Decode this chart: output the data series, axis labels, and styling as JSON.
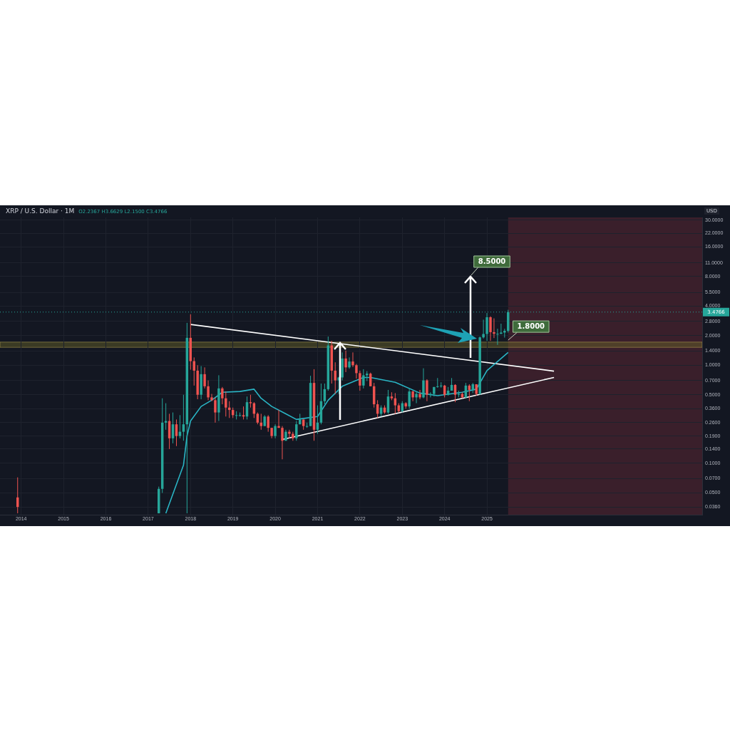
{
  "chart_data": {
    "type": "candlestick",
    "title": "XRP / U.S. Dollar · 1M",
    "subtitle": "O2.2367 H3.6629 L2.1500 C3.4766",
    "ylabel": "USD",
    "x": [
      "2013-12",
      "2017-04",
      "2017-05",
      "2017-06",
      "2017-07",
      "2017-08",
      "2017-09",
      "2017-10",
      "2017-11",
      "2017-12",
      "2018-01",
      "2018-02",
      "2018-03",
      "2018-04",
      "2018-05",
      "2018-06",
      "2018-07",
      "2018-08",
      "2018-09",
      "2018-10",
      "2018-11",
      "2018-12",
      "2019-01",
      "2019-02",
      "2019-03",
      "2019-04",
      "2019-05",
      "2019-06",
      "2019-07",
      "2019-08",
      "2019-09",
      "2019-10",
      "2019-11",
      "2019-12",
      "2020-01",
      "2020-02",
      "2020-03",
      "2020-04",
      "2020-05",
      "2020-06",
      "2020-07",
      "2020-08",
      "2020-09",
      "2020-10",
      "2020-11",
      "2020-12",
      "2021-01",
      "2021-02",
      "2021-03",
      "2021-04",
      "2021-05",
      "2021-06",
      "2021-07",
      "2021-08",
      "2021-09",
      "2021-10",
      "2021-11",
      "2021-12",
      "2022-01",
      "2022-02",
      "2022-03",
      "2022-04",
      "2022-05",
      "2022-06",
      "2022-07",
      "2022-08",
      "2022-09",
      "2022-10",
      "2022-11",
      "2022-12",
      "2023-01",
      "2023-02",
      "2023-03",
      "2023-04",
      "2023-05",
      "2023-06",
      "2023-07",
      "2023-08",
      "2023-09",
      "2023-10",
      "2023-11",
      "2023-12",
      "2024-01",
      "2024-02",
      "2024-03",
      "2024-04",
      "2024-05",
      "2024-06",
      "2024-07",
      "2024-08",
      "2024-09",
      "2024-10",
      "2024-11",
      "2024-12",
      "2025-01",
      "2025-02",
      "2025-03",
      "2025-04",
      "2025-05",
      "2025-06",
      "2025-07"
    ],
    "ohlc": [
      [
        0.045,
        0.072,
        0.031,
        0.036
      ],
      [
        0.031,
        0.058,
        0.031,
        0.055
      ],
      [
        0.055,
        0.46,
        0.05,
        0.26
      ],
      [
        0.26,
        0.41,
        0.22,
        0.27
      ],
      [
        0.27,
        0.32,
        0.14,
        0.18
      ],
      [
        0.18,
        0.33,
        0.16,
        0.25
      ],
      [
        0.25,
        0.28,
        0.15,
        0.19
      ],
      [
        0.19,
        0.31,
        0.18,
        0.21
      ],
      [
        0.21,
        0.5,
        0.17,
        0.25
      ],
      [
        0.25,
        2.7,
        0.031,
        1.9
      ],
      [
        1.9,
        3.3,
        0.9,
        1.1
      ],
      [
        1.1,
        1.2,
        0.62,
        0.88
      ],
      [
        0.88,
        1.0,
        0.45,
        0.5
      ],
      [
        0.5,
        0.98,
        0.45,
        0.81
      ],
      [
        0.81,
        0.95,
        0.58,
        0.61
      ],
      [
        0.61,
        0.7,
        0.44,
        0.47
      ],
      [
        0.47,
        0.51,
        0.43,
        0.44
      ],
      [
        0.44,
        0.47,
        0.26,
        0.33
      ],
      [
        0.33,
        0.79,
        0.27,
        0.58
      ],
      [
        0.58,
        0.6,
        0.4,
        0.46
      ],
      [
        0.46,
        0.54,
        0.3,
        0.37
      ],
      [
        0.37,
        0.43,
        0.29,
        0.35
      ],
      [
        0.35,
        0.37,
        0.29,
        0.31
      ],
      [
        0.31,
        0.34,
        0.28,
        0.31
      ],
      [
        0.31,
        0.33,
        0.3,
        0.31
      ],
      [
        0.31,
        0.38,
        0.28,
        0.3
      ],
      [
        0.3,
        0.48,
        0.28,
        0.42
      ],
      [
        0.42,
        0.5,
        0.37,
        0.41
      ],
      [
        0.41,
        0.42,
        0.29,
        0.32
      ],
      [
        0.32,
        0.33,
        0.25,
        0.26
      ],
      [
        0.26,
        0.32,
        0.22,
        0.24
      ],
      [
        0.24,
        0.31,
        0.24,
        0.3
      ],
      [
        0.3,
        0.31,
        0.21,
        0.23
      ],
      [
        0.23,
        0.23,
        0.18,
        0.19
      ],
      [
        0.19,
        0.25,
        0.18,
        0.24
      ],
      [
        0.24,
        0.35,
        0.23,
        0.23
      ],
      [
        0.23,
        0.24,
        0.11,
        0.17
      ],
      [
        0.17,
        0.22,
        0.17,
        0.21
      ],
      [
        0.21,
        0.22,
        0.18,
        0.2
      ],
      [
        0.2,
        0.21,
        0.17,
        0.18
      ],
      [
        0.18,
        0.27,
        0.17,
        0.25
      ],
      [
        0.25,
        0.32,
        0.25,
        0.28
      ],
      [
        0.28,
        0.28,
        0.22,
        0.24
      ],
      [
        0.24,
        0.26,
        0.23,
        0.24
      ],
      [
        0.24,
        0.78,
        0.24,
        0.66
      ],
      [
        0.66,
        0.91,
        0.17,
        0.22
      ],
      [
        0.22,
        0.39,
        0.2,
        0.26
      ],
      [
        0.26,
        0.65,
        0.25,
        0.43
      ],
      [
        0.43,
        0.65,
        0.4,
        0.57
      ],
      [
        0.57,
        1.96,
        0.55,
        1.59
      ],
      [
        1.59,
        1.77,
        0.65,
        0.88
      ],
      [
        0.88,
        1.07,
        0.51,
        0.7
      ],
      [
        0.7,
        0.76,
        0.51,
        0.75
      ],
      [
        0.75,
        1.35,
        0.7,
        1.17
      ],
      [
        1.17,
        1.41,
        0.85,
        0.95
      ],
      [
        0.95,
        1.2,
        0.92,
        1.09
      ],
      [
        1.09,
        1.35,
        0.96,
        1.0
      ],
      [
        1.0,
        1.03,
        0.73,
        0.83
      ],
      [
        0.83,
        0.88,
        0.55,
        0.62
      ],
      [
        0.62,
        0.91,
        0.58,
        0.79
      ],
      [
        0.79,
        0.87,
        0.69,
        0.82
      ],
      [
        0.82,
        0.84,
        0.61,
        0.61
      ],
      [
        0.61,
        0.66,
        0.37,
        0.4
      ],
      [
        0.4,
        0.44,
        0.29,
        0.32
      ],
      [
        0.32,
        0.39,
        0.3,
        0.37
      ],
      [
        0.37,
        0.39,
        0.32,
        0.33
      ],
      [
        0.33,
        0.56,
        0.32,
        0.48
      ],
      [
        0.48,
        0.53,
        0.44,
        0.46
      ],
      [
        0.46,
        0.52,
        0.32,
        0.39
      ],
      [
        0.39,
        0.41,
        0.33,
        0.34
      ],
      [
        0.34,
        0.43,
        0.33,
        0.41
      ],
      [
        0.41,
        0.42,
        0.36,
        0.38
      ],
      [
        0.38,
        0.58,
        0.36,
        0.54
      ],
      [
        0.54,
        0.55,
        0.43,
        0.47
      ],
      [
        0.47,
        0.54,
        0.41,
        0.51
      ],
      [
        0.51,
        0.56,
        0.45,
        0.47
      ],
      [
        0.47,
        0.93,
        0.46,
        0.7
      ],
      [
        0.7,
        0.72,
        0.43,
        0.5
      ],
      [
        0.5,
        0.53,
        0.47,
        0.51
      ],
      [
        0.51,
        0.6,
        0.48,
        0.6
      ],
      [
        0.6,
        0.74,
        0.59,
        0.61
      ],
      [
        0.61,
        0.67,
        0.59,
        0.62
      ],
      [
        0.62,
        0.63,
        0.47,
        0.5
      ],
      [
        0.5,
        0.6,
        0.49,
        0.55
      ],
      [
        0.55,
        0.74,
        0.55,
        0.63
      ],
      [
        0.63,
        0.64,
        0.42,
        0.5
      ],
      [
        0.5,
        0.55,
        0.47,
        0.51
      ],
      [
        0.51,
        0.53,
        0.46,
        0.47
      ],
      [
        0.47,
        0.66,
        0.46,
        0.62
      ],
      [
        0.62,
        0.64,
        0.43,
        0.56
      ],
      [
        0.56,
        0.66,
        0.52,
        0.64
      ],
      [
        0.64,
        0.64,
        0.49,
        0.51
      ],
      [
        0.51,
        1.96,
        0.5,
        1.92
      ],
      [
        1.92,
        2.91,
        1.87,
        2.08
      ],
      [
        2.08,
        3.4,
        1.77,
        3.08
      ],
      [
        3.08,
        3.15,
        1.77,
        2.17
      ],
      [
        2.17,
        3.0,
        1.89,
        2.09
      ],
      [
        2.09,
        2.35,
        1.61,
        2.09
      ],
      [
        2.09,
        2.65,
        2.07,
        2.15
      ],
      [
        2.15,
        2.35,
        1.91,
        2.24
      ],
      [
        2.2367,
        3.6629,
        2.15,
        3.4766
      ]
    ],
    "series": [
      {
        "type": "line",
        "color": "#2ab5c5",
        "x": [
          "2017-06",
          "2017-11",
          "2017-12",
          "2018-01",
          "2018-04",
          "2018-07",
          "2018-10",
          "2019-03",
          "2019-07",
          "2019-09",
          "2019-12",
          "2020-04",
          "2020-07",
          "2021-01",
          "2021-04",
          "2021-08",
          "2022-02",
          "2022-04",
          "2022-11",
          "2023-06",
          "2023-11",
          "2024-06",
          "2024-10",
          "2025-01",
          "2025-07"
        ],
        "values": [
          0.031,
          0.096,
          0.19,
          0.27,
          0.38,
          0.44,
          0.53,
          0.54,
          0.57,
          0.46,
          0.38,
          0.32,
          0.28,
          0.3,
          0.44,
          0.61,
          0.75,
          0.75,
          0.67,
          0.52,
          0.49,
          0.53,
          0.57,
          0.88,
          1.35
        ]
      },
      {
        "type": "line",
        "color": "#ffffff",
        "x": [
          "2018-01",
          "2026-08"
        ],
        "values": [
          2.6,
          0.87
        ]
      },
      {
        "type": "line",
        "color": "#ffffff",
        "x": [
          "2020-03",
          "2026-08"
        ],
        "values": [
          0.175,
          0.75
        ]
      }
    ],
    "xlim": [
      "2013-07",
      "2030-02"
    ],
    "xticks": [
      "2014",
      "2015",
      "2016",
      "2017",
      "2018",
      "2019",
      "2020",
      "2021",
      "2022",
      "2023",
      "2024",
      "2025"
    ],
    "log": "y",
    "ylim": [
      0.03,
      32
    ],
    "yticks": [
      {
        "value": 30,
        "label": "30.0000"
      },
      {
        "value": 22,
        "label": "22.0000"
      },
      {
        "value": 16,
        "label": "16.0000"
      },
      {
        "value": 11,
        "label": "11.0000"
      },
      {
        "value": 8,
        "label": "8.0000"
      },
      {
        "value": 5.5,
        "label": "5.5000"
      },
      {
        "value": 4,
        "label": "4.0000"
      },
      {
        "value": 2.8,
        "label": "2.8000"
      },
      {
        "value": 2,
        "label": "2.0000"
      },
      {
        "value": 1.4,
        "label": "1.4000"
      },
      {
        "value": 1,
        "label": "1.0000"
      },
      {
        "value": 0.7,
        "label": "0.7000"
      },
      {
        "value": 0.5,
        "label": "0.5000"
      },
      {
        "value": 0.36,
        "label": "0.3600"
      },
      {
        "value": 0.26,
        "label": "0.2600"
      },
      {
        "value": 0.19,
        "label": "0.1900"
      },
      {
        "value": 0.14,
        "label": "0.1400"
      },
      {
        "value": 0.1,
        "label": "0.1000"
      },
      {
        "value": 0.07,
        "label": "0.0700"
      },
      {
        "value": 0.05,
        "label": "0.0500"
      },
      {
        "value": 0.036,
        "label": "0.0360"
      }
    ],
    "grid": true,
    "ref_lines": [
      {
        "axis": "y",
        "value": 3.4766,
        "label": "3.4766",
        "color": "#26a69a",
        "line_style": "dotted"
      }
    ],
    "bands": [
      {
        "axis": "x",
        "from": "2025-07",
        "to": "2030-02",
        "color": "#3a1f2b"
      },
      {
        "axis": "y",
        "from": 1.52,
        "to": 1.72,
        "color": "#6b6528"
      }
    ],
    "annotations": [
      "8.5000",
      {
        "text": "1.8000",
        "x": "2025-07",
        "y": 1.8
      }
    ]
  }
}
